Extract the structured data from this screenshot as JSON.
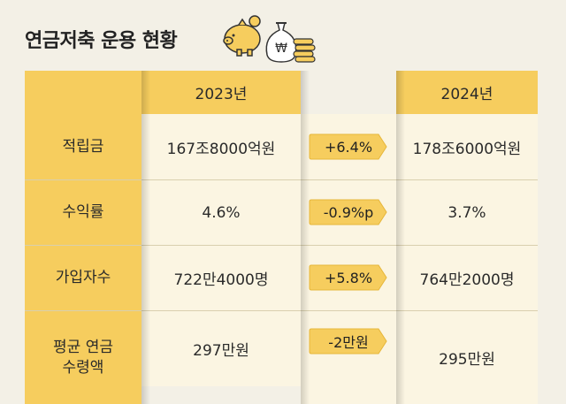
{
  "title": "연금저축 운용 현황",
  "colors": {
    "header": "#f6cd5e",
    "cell": "#fbf5e2",
    "background": "#f3f0e6",
    "badge": "#f6cd5e"
  },
  "icons": [
    "piggy-bank-icon",
    "won-money-bag-icon",
    "coin-stack-icon"
  ],
  "table": {
    "headers": [
      "2023년",
      "2024년"
    ],
    "rows": [
      {
        "label": "적립금",
        "y2023": "167조8000억원",
        "change": "+6.4%",
        "y2024": "178조6000억원"
      },
      {
        "label": "수익률",
        "y2023": "4.6%",
        "change": "-0.9%p",
        "y2024": "3.7%"
      },
      {
        "label": "가입자수",
        "y2023": "722만4000명",
        "change": "+5.8%",
        "y2024": "764만2000명"
      },
      {
        "label": "평균 연금\n수령액",
        "y2023": "297만원",
        "change": "-2만원",
        "y2024": "295만원"
      }
    ]
  }
}
